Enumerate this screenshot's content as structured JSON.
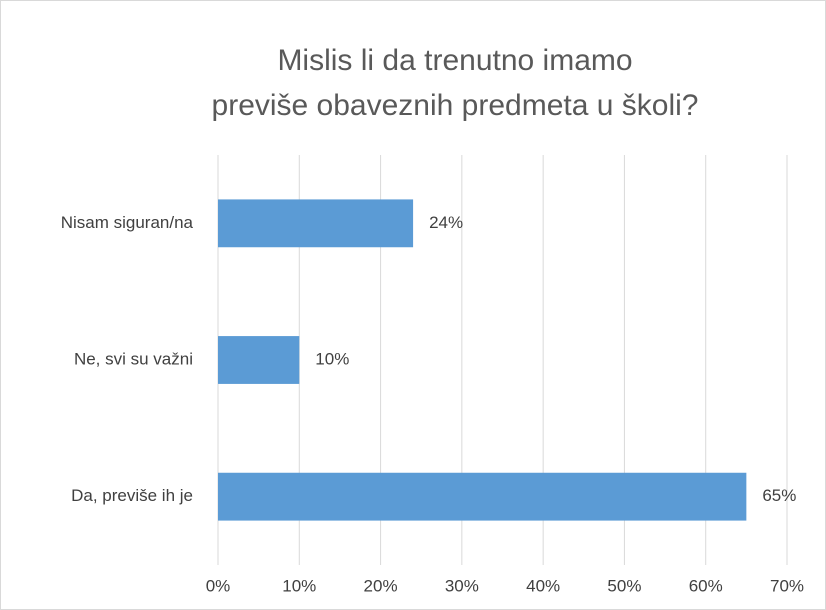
{
  "chart_data": {
    "type": "barh",
    "title": [
      "Mislis li da trenutno imamo",
      "previše obaveznih predmeta u školi?"
    ],
    "categories": [
      "Nisam siguran/na",
      "Ne, svi su važni",
      "Da, previše ih je"
    ],
    "values": [
      24,
      10,
      65
    ],
    "value_labels": [
      "24%",
      "10%",
      "65%"
    ],
    "color": "#5b9bd5",
    "xlim": [
      0,
      70
    ],
    "xticks": [
      {
        "value": 0,
        "label": "0%"
      },
      {
        "value": 10,
        "label": "10%"
      },
      {
        "value": 20,
        "label": "20%"
      },
      {
        "value": 30,
        "label": "30%"
      },
      {
        "value": 40,
        "label": "40%"
      },
      {
        "value": 50,
        "label": "50%"
      },
      {
        "value": 60,
        "label": "60%"
      },
      {
        "value": 70,
        "label": "70%"
      }
    ],
    "grid": true
  }
}
